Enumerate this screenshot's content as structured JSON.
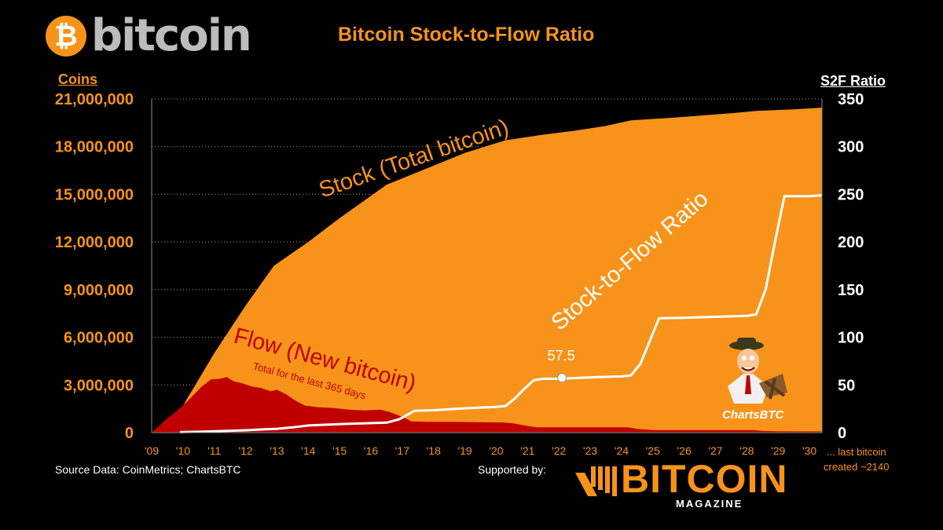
{
  "header": {
    "logo_symbol": "₿",
    "logo_text": "bitcoin",
    "title": "Bitcoin Stock-to-Flow Ratio"
  },
  "footer": {
    "source": "Source Data: CoinMetrics; ChartsBTC",
    "supported_by": "Supported by:",
    "sponsor_name": "BITCOIN",
    "sponsor_sub": "MAGAZINE",
    "note_line1": "... last bitcoin",
    "note_line2": "created ~2140"
  },
  "mascot": {
    "label": "ChartsBTC",
    "icon": "cartoon-mascot-icon"
  },
  "colors": {
    "stock": "#f7931a",
    "flow": "#c00000",
    "s2f": "#ffffff",
    "background": "#000000",
    "grid": "#a0a0a0"
  },
  "chart_data": {
    "type": "area",
    "title": "Bitcoin Stock-to-Flow Ratio",
    "left_axis": {
      "label": "Coins",
      "ylim": [
        0,
        21000000
      ],
      "ticks": [
        "0",
        "3,000,000",
        "6,000,000",
        "9,000,000",
        "12,000,000",
        "15,000,000",
        "18,000,000",
        "21,000,000"
      ],
      "tick_values": [
        0,
        3000000,
        6000000,
        9000000,
        12000000,
        15000000,
        18000000,
        21000000
      ]
    },
    "right_axis": {
      "label": "S2F Ratio",
      "ylim": [
        0,
        350
      ],
      "ticks": [
        "0",
        "50",
        "100",
        "150",
        "200",
        "250",
        "300",
        "350"
      ],
      "tick_values": [
        0,
        50,
        100,
        150,
        200,
        250,
        300,
        350
      ]
    },
    "x_axis": {
      "xlim": [
        2009,
        2030.4
      ],
      "ticks": [
        "'09",
        "'10",
        "'11",
        "'12",
        "'13",
        "'14",
        "'15",
        "'16",
        "'17",
        "'18",
        "'19",
        "'20",
        "'21",
        "'22",
        "'23",
        "'24",
        "'25",
        "'26",
        "'27",
        "'28",
        "'29",
        "'30"
      ],
      "tick_values": [
        2009,
        2010,
        2011,
        2012,
        2013,
        2014,
        2015,
        2016,
        2017,
        2018,
        2019,
        2020,
        2021,
        2022,
        2023,
        2024,
        2025,
        2026,
        2027,
        2028,
        2029,
        2030
      ]
    },
    "grid": true,
    "series": [
      {
        "name": "Stock (Total bitcoin)",
        "axis": "left",
        "kind": "area",
        "x": [
          2009,
          2010,
          2011,
          2012,
          2012.9,
          2014,
          2015,
          2016.5,
          2018,
          2019,
          2020.3,
          2021.5,
          2022.5,
          2023.5,
          2024.3,
          2025.5,
          2026.5,
          2027.5,
          2028.3,
          2029.5,
          2030.4
        ],
        "y": [
          0,
          1700000,
          5000000,
          8000000,
          10500000,
          12000000,
          13500000,
          15600000,
          16800000,
          17600000,
          18400000,
          18750000,
          19000000,
          19300000,
          19650000,
          19800000,
          19950000,
          20100000,
          20250000,
          20350000,
          20450000
        ]
      },
      {
        "name": "Flow (New bitcoin)",
        "annotation": "Total for the last 365 days",
        "axis": "left",
        "kind": "area",
        "x": [
          2009,
          2009.5,
          2009.9,
          2010.3,
          2010.6,
          2010.9,
          2011.2,
          2011.4,
          2011.6,
          2011.9,
          2012.2,
          2012.5,
          2012.8,
          2013.0,
          2013.3,
          2013.6,
          2013.9,
          2014.3,
          2014.8,
          2015.3,
          2015.8,
          2016.3,
          2016.6,
          2017.0,
          2017.3,
          2017.8,
          2018.5,
          2019.5,
          2020.2,
          2020.5,
          2021.0,
          2021.3,
          2022.0,
          2023.0,
          2024.2,
          2024.5,
          2025.0,
          2026.0,
          2027.0,
          2028.2,
          2028.5,
          2029.0,
          2030.4
        ],
        "y": [
          0,
          900000,
          1500000,
          2300000,
          2900000,
          3350000,
          3400000,
          3500000,
          3250000,
          3100000,
          2900000,
          2800000,
          2600000,
          2700000,
          2400000,
          2000000,
          1700000,
          1600000,
          1550000,
          1450000,
          1400000,
          1450000,
          1300000,
          1000000,
          700000,
          680000,
          680000,
          650000,
          640000,
          600000,
          420000,
          330000,
          330000,
          330000,
          330000,
          230000,
          165000,
          165000,
          165000,
          165000,
          110000,
          85000,
          80000
        ]
      },
      {
        "name": "Stock-to-Flow Ratio",
        "axis": "right",
        "kind": "line",
        "x": [
          2009.9,
          2010.5,
          2011.0,
          2012.0,
          2012.6,
          2013.0,
          2013.5,
          2014.0,
          2015.0,
          2016.0,
          2016.5,
          2016.9,
          2017.4,
          2018.0,
          2019.0,
          2020.0,
          2020.3,
          2020.6,
          2020.9,
          2021.2,
          2021.5,
          2022.0,
          2023.0,
          2024.0,
          2024.3,
          2024.6,
          2024.9,
          2025.2,
          2026.0,
          2027.0,
          2028.0,
          2028.3,
          2028.6,
          2028.9,
          2029.2,
          2030.0,
          2030.4
        ],
        "y": [
          0.5,
          0.9,
          1.4,
          2.5,
          3.5,
          4,
          5.5,
          7.5,
          9,
          10,
          10.5,
          14,
          23,
          23.5,
          25.5,
          27,
          28,
          36,
          46,
          55,
          56.5,
          56.5,
          58,
          59,
          60,
          72,
          96,
          120,
          120.5,
          121.5,
          122.5,
          124,
          150,
          200,
          248,
          248,
          249
        ]
      }
    ],
    "annotations": [
      {
        "text": "Stock (Total bitcoin)",
        "series": "Stock (Total bitcoin)"
      },
      {
        "text": "Stock-to-Flow Ratio",
        "series": "Stock-to-Flow Ratio"
      },
      {
        "text": "Flow (New bitcoin)",
        "series": "Flow (New bitcoin)"
      },
      {
        "text": "Total for the last 365 days",
        "series": "Flow (New bitcoin)"
      },
      {
        "text": "57.5",
        "x": 2022.1,
        "y": 57.5,
        "axis": "right",
        "marker": true
      }
    ]
  }
}
